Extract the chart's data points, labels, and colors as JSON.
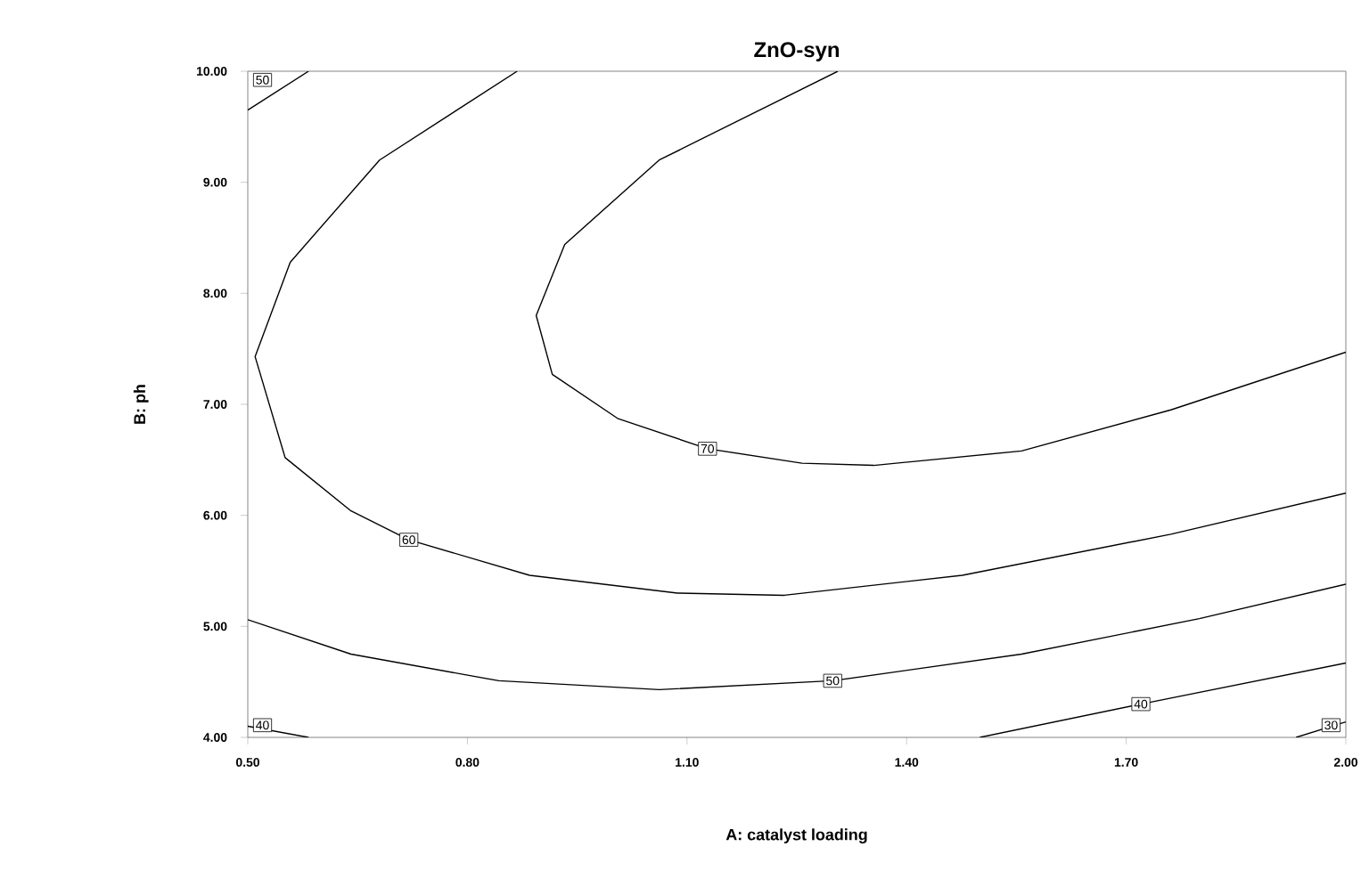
{
  "chart_data": {
    "type": "line",
    "title": "ZnO-syn",
    "xlabel": "A: catalyst loading",
    "ylabel": "B: ph",
    "xlim": [
      0.5,
      2.0
    ],
    "ylim": [
      4.0,
      10.0
    ],
    "xticks": [
      {
        "value": 0.5,
        "label": "0.50"
      },
      {
        "value": 0.8,
        "label": "0.80"
      },
      {
        "value": 1.1,
        "label": "1.10"
      },
      {
        "value": 1.4,
        "label": "1.40"
      },
      {
        "value": 1.7,
        "label": "1.70"
      },
      {
        "value": 2.0,
        "label": "2.00"
      }
    ],
    "yticks": [
      {
        "value": 4.0,
        "label": "4.00"
      },
      {
        "value": 5.0,
        "label": "5.00"
      },
      {
        "value": 6.0,
        "label": "6.00"
      },
      {
        "value": 7.0,
        "label": "7.00"
      },
      {
        "value": 8.0,
        "label": "8.00"
      },
      {
        "value": 9.0,
        "label": "9.00"
      },
      {
        "value": 10.0,
        "label": "10.00"
      }
    ],
    "series": [
      {
        "name": "70",
        "color": "#000000",
        "x": [
          1.306,
          1.062,
          0.933,
          0.894,
          0.916,
          1.006,
          1.128,
          1.257,
          1.355,
          1.557,
          1.761,
          2.0
        ],
        "values": [
          10.0,
          9.2,
          8.44,
          7.8,
          7.27,
          6.87,
          6.6,
          6.47,
          6.45,
          6.58,
          6.95,
          7.47
        ]
      },
      {
        "name": "60",
        "color": "#000000",
        "x": [
          0.868,
          0.68,
          0.558,
          0.51,
          0.551,
          0.641,
          0.72,
          0.885,
          1.087,
          1.233,
          1.476,
          1.761,
          2.0
        ],
        "values": [
          10.0,
          9.2,
          8.28,
          7.43,
          6.52,
          6.04,
          5.78,
          5.46,
          5.3,
          5.28,
          5.46,
          5.83,
          6.2
        ]
      },
      {
        "name": "50",
        "color": "#000000",
        "x": [
          0.5,
          0.583
        ],
        "values": [
          9.65,
          10.0
        ]
      },
      {
        "name": "50",
        "color": "#000000",
        "x": [
          0.5,
          0.641,
          0.843,
          1.062,
          1.299,
          1.557,
          1.8,
          2.0
        ],
        "values": [
          5.06,
          4.75,
          4.51,
          4.43,
          4.51,
          4.75,
          5.07,
          5.38
        ]
      },
      {
        "name": "40",
        "color": "#000000",
        "x": [
          0.5,
          0.583
        ],
        "values": [
          4.1,
          4.0
        ]
      },
      {
        "name": "40",
        "color": "#000000",
        "x": [
          1.5,
          1.72,
          2.0
        ],
        "values": [
          4.0,
          4.3,
          4.67
        ]
      },
      {
        "name": "30",
        "color": "#000000",
        "x": [
          1.932,
          2.0
        ],
        "values": [
          4.0,
          4.14
        ]
      }
    ]
  }
}
